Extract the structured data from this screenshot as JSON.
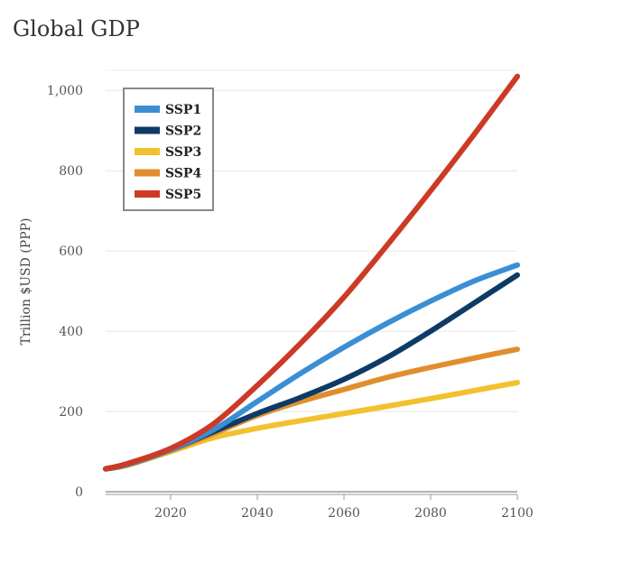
{
  "chart_data": {
    "type": "line",
    "title": "Global GDP",
    "xlabel": "",
    "ylabel": "Trillion $USD (PPP)",
    "xlim": [
      2005,
      2100
    ],
    "ylim": [
      0,
      1050
    ],
    "xticks": [
      2020,
      2040,
      2060,
      2080,
      2100
    ],
    "yticks": [
      0,
      200,
      400,
      600,
      800,
      1000
    ],
    "ytick_labels": [
      "0",
      "200",
      "400",
      "600",
      "800",
      "1,000"
    ],
    "legend_position": "top-left",
    "x": [
      2005,
      2010,
      2020,
      2030,
      2040,
      2050,
      2060,
      2070,
      2080,
      2090,
      2100
    ],
    "series": [
      {
        "name": "SSP1",
        "color": "#3a8fd4",
        "values": [
          57,
          68,
          105,
          155,
          225,
          295,
          360,
          420,
          475,
          525,
          565
        ]
      },
      {
        "name": "SSP2",
        "color": "#0d3b66",
        "values": [
          57,
          68,
          105,
          150,
          195,
          235,
          280,
          335,
          400,
          470,
          540
        ]
      },
      {
        "name": "SSP3",
        "color": "#f2c12e",
        "values": [
          57,
          66,
          100,
          135,
          158,
          177,
          195,
          213,
          232,
          252,
          272
        ]
      },
      {
        "name": "SSP4",
        "color": "#e08e2d",
        "values": [
          57,
          67,
          103,
          145,
          190,
          225,
          255,
          285,
          310,
          333,
          355
        ]
      },
      {
        "name": "SSP5",
        "color": "#cc3a26",
        "values": [
          57,
          70,
          108,
          170,
          265,
          370,
          485,
          615,
          750,
          890,
          1035
        ]
      }
    ]
  }
}
